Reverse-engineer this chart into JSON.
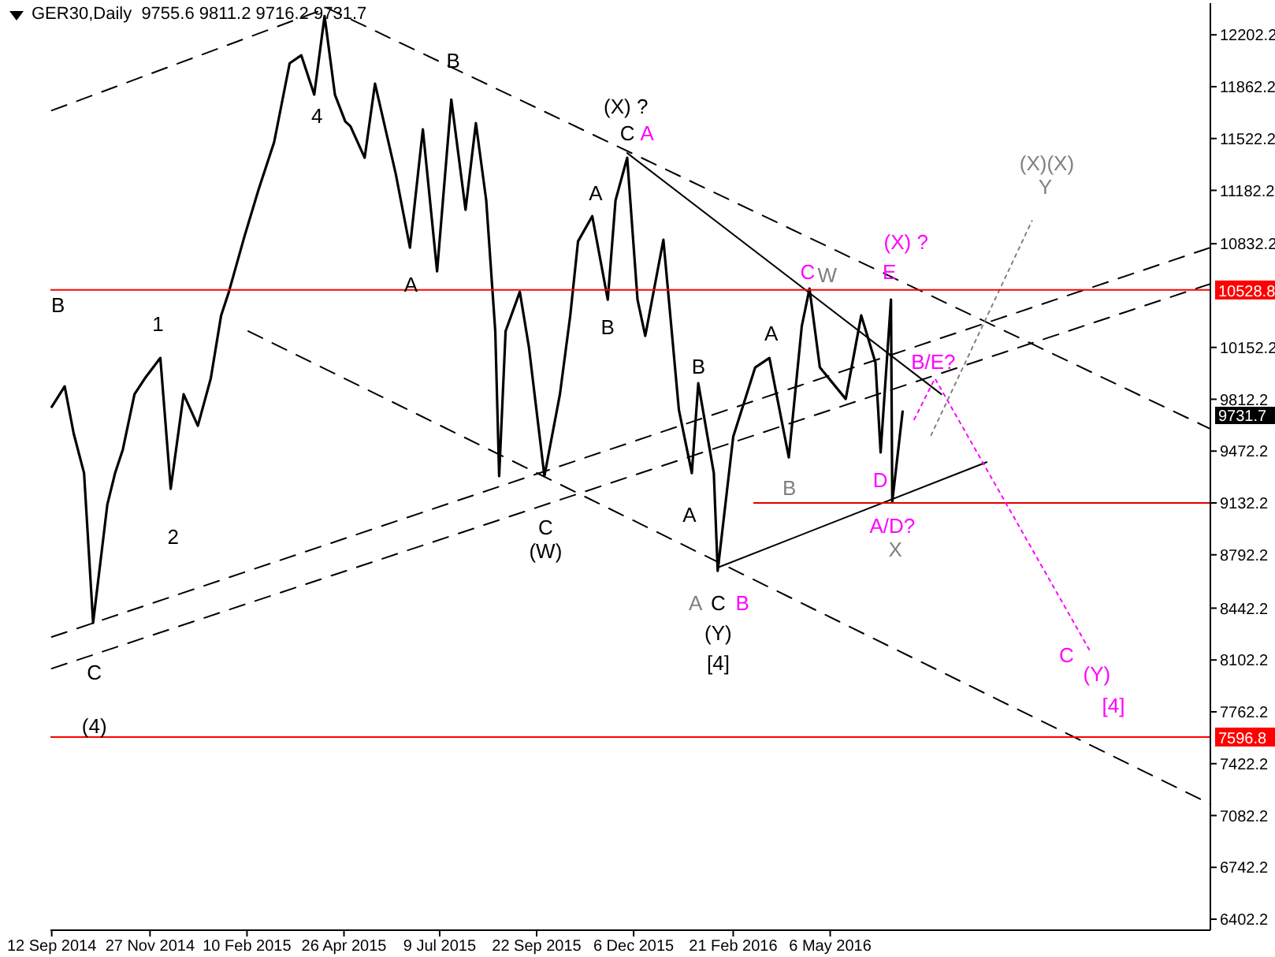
{
  "chart_data": {
    "type": "line",
    "title": "GER30,Daily  9755.6 9811.2 9716.2 9731.7",
    "xlim": [
      "2014-09-11",
      "2017-02-24"
    ],
    "xticks": [
      {
        "value": "2014-09-12",
        "label": "12 Sep 2014"
      },
      {
        "value": "2014-11-27",
        "label": "27 Nov 2014"
      },
      {
        "value": "2015-02-10",
        "label": "10 Feb 2015"
      },
      {
        "value": "2015-04-26",
        "label": "26 Apr 2015"
      },
      {
        "value": "2015-07-09",
        "label": "9 Jul 2015"
      },
      {
        "value": "2015-09-22",
        "label": "22 Sep 2015"
      },
      {
        "value": "2015-12-06",
        "label": "6 Dec 2015"
      },
      {
        "value": "2016-02-21",
        "label": "21 Feb 2016"
      },
      {
        "value": "2016-05-06",
        "label": "6 May 2016"
      }
    ],
    "ylim": [
      6330,
      12410
    ],
    "yticks": [
      {
        "value": 6402.2,
        "label": "6402.2"
      },
      {
        "value": 6742.2,
        "label": "6742.2"
      },
      {
        "value": 7082.2,
        "label": "7082.2"
      },
      {
        "value": 7422.2,
        "label": "7422.2"
      },
      {
        "value": 7762.2,
        "label": "7762.2"
      },
      {
        "value": 8102.2,
        "label": "8102.2"
      },
      {
        "value": 8442.2,
        "label": "8442.2"
      },
      {
        "value": 8792.2,
        "label": "8792.2"
      },
      {
        "value": 9132.2,
        "label": "9132.2"
      },
      {
        "value": 9472.2,
        "label": "9472.2"
      },
      {
        "value": 9812.2,
        "label": "9812.2"
      },
      {
        "value": 10152.2,
        "label": "10152.2"
      },
      {
        "value": 10832.2,
        "label": "10832.2"
      },
      {
        "value": 11182.2,
        "label": "11182.2"
      },
      {
        "value": 11522.2,
        "label": "11522.2"
      },
      {
        "value": 11862.2,
        "label": "11862.2"
      },
      {
        "value": 12202.2,
        "label": "12202.2"
      }
    ],
    "grid": false,
    "marker": "none",
    "series": [
      {
        "color": "#000000",
        "line_style": "solid",
        "x": [
          "2014-09-12",
          "2014-09-22",
          "2014-09-29",
          "2014-10-07",
          "2014-10-14",
          "2014-10-25",
          "2014-10-31",
          "2014-11-06",
          "2014-11-15",
          "2014-11-23",
          "2014-12-05",
          "2014-12-13",
          "2014-12-23",
          "2015-01-03",
          "2015-01-13",
          "2015-01-21",
          "2015-01-27",
          "2015-02-08",
          "2015-02-19",
          "2015-03-03",
          "2015-03-15",
          "2015-03-24",
          "2015-04-03",
          "2015-04-11",
          "2015-04-19",
          "2015-04-27",
          "2015-05-01",
          "2015-05-12",
          "2015-05-20",
          "2015-06-05",
          "2015-06-16",
          "2015-06-26",
          "2015-07-07",
          "2015-07-18",
          "2015-07-29",
          "2015-08-06",
          "2015-08-14",
          "2015-08-21",
          "2015-08-24",
          "2015-08-29",
          "2015-09-09",
          "2015-09-16",
          "2015-09-28",
          "2015-10-10",
          "2015-10-18",
          "2015-10-24",
          "2015-11-04",
          "2015-11-16",
          "2015-11-22",
          "2015-12-01",
          "2015-12-09",
          "2015-12-15",
          "2015-12-29",
          "2016-01-10",
          "2016-01-20",
          "2016-01-25",
          "2016-02-06",
          "2016-02-09",
          "2016-02-21",
          "2016-03-09",
          "2016-03-20",
          "2016-04-04",
          "2016-04-14",
          "2016-04-20",
          "2016-04-28",
          "2016-05-18",
          "2016-05-30",
          "2016-06-10",
          "2016-06-14",
          "2016-06-22",
          "2016-06-23",
          "2016-07-01"
        ],
        "values": [
          9762,
          9897,
          9587,
          9328,
          8346,
          9121,
          9328,
          9483,
          9845,
          9949,
          10083,
          9225,
          9845,
          9638,
          9949,
          10362,
          10517,
          10879,
          11189,
          11499,
          12016,
          12068,
          11810,
          12326,
          11810,
          11634,
          11603,
          11396,
          11882,
          11292,
          10807,
          11582,
          10651,
          11778,
          11055,
          11623,
          11117,
          10259,
          9308,
          10259,
          10517,
          10155,
          9308,
          9845,
          10362,
          10848,
          11013,
          10465,
          11117,
          11396,
          10465,
          10228,
          10858,
          9742,
          9328,
          9917,
          9328,
          8687,
          9566,
          10021,
          10083,
          9431,
          10290,
          10538,
          10021,
          9814,
          10362,
          10052,
          9463,
          10465,
          9140,
          9731.7
        ]
      },
      {
        "color": "#000000",
        "line_style": "dashed",
        "x": [
          "2014-09-12",
          "2015-04-13"
        ],
        "values": [
          11706,
          12378
        ]
      },
      {
        "color": "#000000",
        "line_style": "dashed",
        "x": [
          "2015-04-13",
          "2017-02-24"
        ],
        "values": [
          12378,
          9618
        ]
      },
      {
        "color": "#000000",
        "line_style": "solid",
        "x": [
          "2015-12-01",
          "2016-07-31"
        ],
        "values": [
          11427,
          9845
        ]
      },
      {
        "color": "#000000",
        "line_style": "dashed",
        "x": [
          "2015-02-11",
          "2017-02-24"
        ],
        "values": [
          10259,
          7157
        ]
      },
      {
        "color": "#000000",
        "line_style": "dashed",
        "x": [
          "2014-09-12",
          "2017-02-24"
        ],
        "values": [
          8253,
          10807
        ]
      },
      {
        "color": "#000000",
        "line_style": "dashed",
        "x": [
          "2014-09-12",
          "2017-02-24"
        ],
        "values": [
          8046,
          10569
        ]
      },
      {
        "color": "#000000",
        "line_style": "solid",
        "x": [
          "2016-02-09",
          "2016-09-04"
        ],
        "values": [
          8708,
          9400
        ]
      },
      {
        "color": "#e00000",
        "line_style": "solid",
        "x": [
          "2016-03-08",
          "2017-02-24"
        ],
        "values": [
          9132,
          9132
        ]
      },
      {
        "color": "#ff00ff",
        "line_style": "dotted",
        "x": [
          "2016-07-10",
          "2016-07-26",
          "2016-11-23"
        ],
        "values": [
          9680,
          9949,
          8160
        ]
      },
      {
        "color": "#808080",
        "line_style": "dotted",
        "x": [
          "2016-07-23",
          "2016-10-09"
        ],
        "values": [
          9576,
          10982
        ]
      }
    ],
    "ref_lines": [
      {
        "axis": "y",
        "value": 10528.8,
        "label": "10528.8",
        "color": "#ff0000",
        "line_style": "solid"
      },
      {
        "axis": "y",
        "value": 7596.8,
        "label": "7596.8",
        "color": "#ff0000",
        "line_style": "solid"
      }
    ],
    "annotations": [
      "B",
      "1",
      "2",
      "C",
      "(4)",
      "4",
      "B",
      "A",
      "(X) ?",
      "C",
      "A",
      "A",
      "B",
      "B",
      "A",
      "C",
      "(W)",
      "A",
      "C",
      "B",
      "(Y)",
      "[4]",
      "A",
      "B",
      "C",
      "W",
      "(X) ?",
      "E",
      "B/E?",
      "D",
      "A/D?",
      "X",
      "(X)(X)",
      "Y",
      "C",
      "(Y)",
      "[4]",
      "9731.7"
    ]
  }
}
